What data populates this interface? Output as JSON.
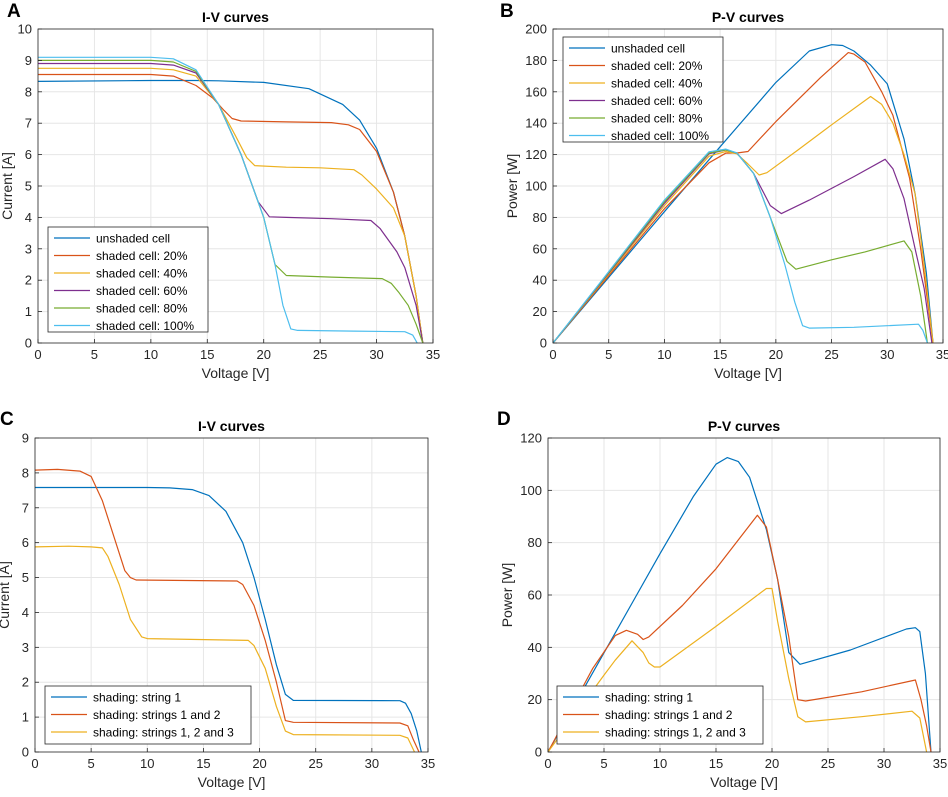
{
  "figure": {
    "panels": [
      "A",
      "B",
      "C",
      "D"
    ]
  },
  "colors": {
    "blue": "#0072BD",
    "orange": "#D95319",
    "yellow": "#EDB120",
    "purple": "#7E2F8E",
    "green": "#77AC30",
    "cyan": "#4DBEEE"
  },
  "chart_data": [
    {
      "panel": "A",
      "type": "line",
      "title": "I-V curves",
      "xlabel": "Voltage [V]",
      "ylabel": "Current [A]",
      "xlim": [
        0,
        35
      ],
      "ylim": [
        0,
        10
      ],
      "xticks": [
        0,
        5,
        10,
        15,
        20,
        25,
        30,
        35
      ],
      "yticks": [
        0,
        1,
        2,
        3,
        4,
        5,
        6,
        7,
        8,
        9,
        10
      ],
      "grid": true,
      "legend": "bottom-left",
      "series": [
        {
          "name": "unshaded cell",
          "color": "#0072BD",
          "x": [
            0,
            10,
            14,
            16,
            20,
            24,
            27,
            28.5,
            30,
            31.5,
            32.5,
            33.5,
            34.1
          ],
          "y": [
            8.33,
            8.36,
            8.36,
            8.35,
            8.3,
            8.1,
            7.6,
            7.1,
            6.2,
            4.8,
            3.4,
            1.5,
            0
          ]
        },
        {
          "name": "shaded cell: 20%",
          "color": "#D95319",
          "x": [
            0,
            10,
            12,
            14,
            15.5,
            16.5,
            17.2,
            18,
            22,
            26,
            27.5,
            28.5,
            30,
            31.5,
            32.5,
            33.5,
            34.1
          ],
          "y": [
            8.55,
            8.55,
            8.5,
            8.2,
            7.8,
            7.4,
            7.15,
            7.07,
            7.04,
            7.02,
            6.95,
            6.8,
            6.1,
            4.8,
            3.4,
            1.5,
            0
          ]
        },
        {
          "name": "shaded cell: 40%",
          "color": "#EDB120",
          "x": [
            0,
            10,
            12,
            14,
            16,
            17.5,
            18.5,
            19.2,
            22,
            25,
            28,
            28.7,
            30,
            31.5,
            32.5,
            33.5,
            34.1
          ],
          "y": [
            8.75,
            8.75,
            8.7,
            8.5,
            7.6,
            6.6,
            5.9,
            5.65,
            5.6,
            5.58,
            5.52,
            5.35,
            4.9,
            4.3,
            3.4,
            1.5,
            0
          ]
        },
        {
          "name": "shaded cell: 60%",
          "color": "#7E2F8E",
          "x": [
            0,
            10,
            12,
            14,
            16,
            18,
            19.5,
            20.5,
            22,
            26,
            29.5,
            30.3,
            31,
            31.8,
            32.5,
            33.5,
            34.1
          ],
          "y": [
            8.9,
            8.9,
            8.85,
            8.6,
            7.6,
            6.0,
            4.5,
            4.02,
            4.0,
            3.96,
            3.9,
            3.65,
            3.3,
            2.9,
            2.4,
            1.2,
            0
          ]
        },
        {
          "name": "shaded cell: 80%",
          "color": "#77AC30",
          "x": [
            0,
            10,
            12,
            14,
            16,
            18,
            20,
            21,
            22,
            26,
            30.5,
            31.3,
            32,
            32.8,
            33.5,
            34.1
          ],
          "y": [
            9.0,
            9.0,
            8.95,
            8.65,
            7.6,
            6.0,
            4.0,
            2.5,
            2.15,
            2.1,
            2.05,
            1.9,
            1.6,
            1.2,
            0.6,
            0
          ]
        },
        {
          "name": "shaded cell: 100%",
          "color": "#4DBEEE",
          "x": [
            0,
            10,
            12,
            14,
            16,
            18,
            20,
            21,
            21.7,
            22.4,
            23,
            28,
            32.5,
            33.2,
            33.6
          ],
          "y": [
            9.1,
            9.1,
            9.05,
            8.7,
            7.6,
            6.0,
            4.0,
            2.5,
            1.2,
            0.45,
            0.4,
            0.38,
            0.36,
            0.25,
            0
          ]
        }
      ]
    },
    {
      "panel": "B",
      "type": "line",
      "title": "P-V curves",
      "xlabel": "Voltage [V]",
      "ylabel": "Power [W]",
      "xlim": [
        0,
        35
      ],
      "ylim": [
        0,
        200
      ],
      "xticks": [
        0,
        5,
        10,
        15,
        20,
        25,
        30,
        35
      ],
      "yticks": [
        0,
        20,
        40,
        60,
        80,
        100,
        120,
        140,
        160,
        180,
        200
      ],
      "grid": true,
      "legend": "top-left",
      "series": [
        {
          "name": "unshaded cell",
          "color": "#0072BD",
          "x": [
            0,
            5,
            10,
            15,
            20,
            23,
            25,
            26,
            27,
            28.5,
            30,
            31.5,
            32.5,
            33.5,
            34.1
          ],
          "y": [
            0,
            41.8,
            83.6,
            125,
            166,
            186,
            190,
            189.5,
            186,
            177,
            165,
            130,
            95,
            45,
            0
          ]
        },
        {
          "name": "shaded cell: 20%",
          "color": "#D95319",
          "x": [
            0,
            5,
            10,
            14,
            15.5,
            16.5,
            17.5,
            20,
            24,
            26.5,
            27,
            28,
            29.5,
            30.5,
            32,
            33,
            34.1
          ],
          "y": [
            0,
            42.8,
            85.5,
            114.8,
            120.9,
            121,
            122,
            141,
            169,
            185,
            184,
            179,
            160,
            145,
            105,
            60,
            0
          ]
        },
        {
          "name": "shaded cell: 40%",
          "color": "#EDB120",
          "x": [
            0,
            5,
            10,
            14,
            15.5,
            16.5,
            17.5,
            18.5,
            19.2,
            22,
            25,
            28.5,
            29.5,
            30.5,
            31.5,
            32.5,
            33.3,
            34.1
          ],
          "y": [
            0,
            43.8,
            87.5,
            119,
            122,
            120.5,
            114,
            107,
            108.5,
            123,
            139,
            157,
            152,
            140,
            120,
            95,
            50,
            0
          ]
        },
        {
          "name": "shaded cell: 60%",
          "color": "#7E2F8E",
          "x": [
            0,
            5,
            10,
            14,
            15.5,
            16.5,
            18,
            19.5,
            20.5,
            23,
            27,
            29.8,
            30.5,
            31.5,
            32.5,
            33.3,
            34
          ],
          "y": [
            0,
            44.5,
            89,
            120.5,
            123,
            121,
            108,
            87.5,
            82.4,
            91,
            106,
            117,
            111,
            92,
            60,
            35,
            0
          ]
        },
        {
          "name": "shaded cell: 80%",
          "color": "#77AC30",
          "x": [
            0,
            5,
            10,
            14,
            15.5,
            16.5,
            18,
            19.5,
            21,
            21.8,
            25,
            28,
            31.5,
            32.2,
            33,
            33.6
          ],
          "y": [
            0,
            45,
            90,
            121,
            123,
            121,
            108,
            80,
            52,
            47,
            53,
            58,
            65,
            58,
            30,
            0
          ]
        },
        {
          "name": "shaded cell: 100%",
          "color": "#4DBEEE",
          "x": [
            0,
            5,
            10,
            14,
            15.5,
            16.5,
            18,
            19.5,
            20.8,
            21.7,
            22.4,
            23,
            27,
            32.8,
            33.2,
            33.6
          ],
          "y": [
            0,
            45.5,
            91,
            121.8,
            123.5,
            121,
            108,
            80,
            50,
            26,
            11,
            9.5,
            10,
            12,
            8,
            0
          ]
        }
      ]
    },
    {
      "panel": "C",
      "type": "line",
      "title": "I-V curves",
      "xlabel": "Voltage [V]",
      "ylabel": "Current [A]",
      "xlim": [
        0,
        35
      ],
      "ylim": [
        0,
        9
      ],
      "xticks": [
        0,
        5,
        10,
        15,
        20,
        25,
        30,
        35
      ],
      "yticks": [
        0,
        1,
        2,
        3,
        4,
        5,
        6,
        7,
        8,
        9
      ],
      "grid": true,
      "legend": "bottom-left",
      "series": [
        {
          "name": "shading: string 1",
          "color": "#0072BD",
          "x": [
            0,
            10,
            12,
            14,
            15.5,
            17,
            18.5,
            19.5,
            20.5,
            21.5,
            22.3,
            23,
            32.5,
            33,
            33.5,
            34,
            34.4
          ],
          "y": [
            7.58,
            7.58,
            7.57,
            7.52,
            7.35,
            6.9,
            6.0,
            5.0,
            3.8,
            2.5,
            1.65,
            1.48,
            1.47,
            1.4,
            1.1,
            0.6,
            0
          ]
        },
        {
          "name": "shading: strings 1 and 2",
          "color": "#D95319",
          "x": [
            0,
            2,
            4,
            5,
            6,
            7,
            8,
            8.5,
            9,
            18,
            18.5,
            19.5,
            20.5,
            21.5,
            22.3,
            23,
            32.5,
            33.2,
            33.7,
            34.2
          ],
          "y": [
            8.08,
            8.1,
            8.05,
            7.9,
            7.2,
            6.2,
            5.2,
            5.0,
            4.93,
            4.9,
            4.8,
            4.2,
            3.2,
            2.0,
            0.9,
            0.85,
            0.83,
            0.75,
            0.35,
            0
          ]
        },
        {
          "name": "shading: strings 1, 2 and 3",
          "color": "#EDB120",
          "x": [
            0,
            3,
            5,
            6,
            6.5,
            7.5,
            8.5,
            9.5,
            10,
            19,
            19.5,
            20.5,
            21.5,
            22.3,
            23,
            32.5,
            33.2,
            33.8
          ],
          "y": [
            5.88,
            5.9,
            5.88,
            5.85,
            5.6,
            4.8,
            3.8,
            3.3,
            3.25,
            3.2,
            3.05,
            2.4,
            1.3,
            0.6,
            0.5,
            0.48,
            0.4,
            0
          ]
        }
      ]
    },
    {
      "panel": "D",
      "type": "line",
      "title": "P-V curves",
      "xlabel": "Voltage [V]",
      "ylabel": "Power [W]",
      "xlim": [
        0,
        35
      ],
      "ylim": [
        0,
        120
      ],
      "xticks": [
        0,
        5,
        10,
        15,
        20,
        25,
        30,
        35
      ],
      "yticks": [
        0,
        20,
        40,
        60,
        80,
        100,
        120
      ],
      "grid": true,
      "legend": "bottom-left",
      "series": [
        {
          "name": "shading: string 1",
          "color": "#0072BD",
          "x": [
            0,
            5,
            10,
            13,
            15,
            16,
            17,
            18,
            19.5,
            20.5,
            21.5,
            22.5,
            27,
            32,
            32.8,
            33.2,
            33.7,
            34.2
          ],
          "y": [
            0,
            37.9,
            75.8,
            97.8,
            110,
            112.5,
            111,
            105,
            85,
            66,
            38,
            33.5,
            39,
            47,
            47.5,
            46,
            30,
            0
          ]
        },
        {
          "name": "shading: strings 1 and 2",
          "color": "#D95319",
          "x": [
            0,
            2,
            4,
            6,
            7,
            8,
            8.5,
            9,
            12,
            15,
            18.7,
            19.5,
            20.5,
            21.5,
            22.3,
            23,
            28,
            32.8,
            33.3,
            33.8,
            34.2
          ],
          "y": [
            0,
            16,
            32,
            44.5,
            46.5,
            45,
            43,
            44,
            56,
            70,
            90.5,
            86,
            66,
            44,
            20,
            19.5,
            23,
            27.5,
            20,
            10,
            0
          ]
        },
        {
          "name": "shading: strings 1, 2 and 3",
          "color": "#EDB120",
          "x": [
            0,
            3,
            5,
            6,
            7,
            7.5,
            8.5,
            9,
            9.5,
            10,
            15,
            19.5,
            20,
            20.5,
            21.5,
            22.3,
            23,
            28,
            32.5,
            33.2,
            33.8
          ],
          "y": [
            0,
            17.7,
            29.4,
            35.1,
            40,
            42.5,
            38,
            34,
            32.5,
            32.5,
            48,
            62.5,
            62.5,
            50,
            28,
            13.5,
            11.5,
            13.5,
            15.6,
            13,
            0
          ]
        }
      ]
    }
  ]
}
